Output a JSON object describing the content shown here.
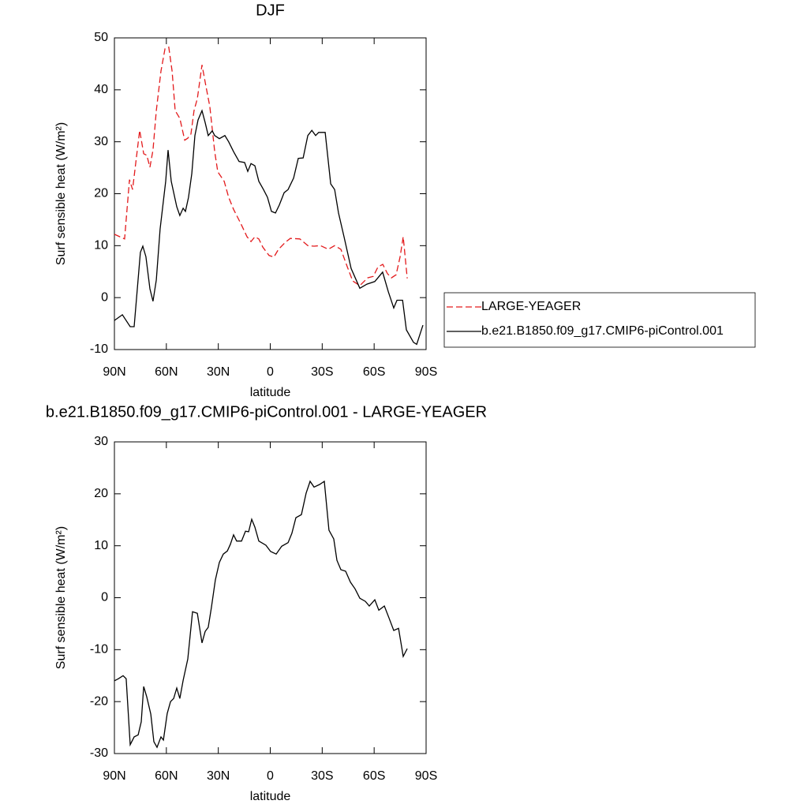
{
  "chart_data": [
    {
      "type": "line",
      "title": "DJF",
      "xlabel": "latitude",
      "ylabel": "Surf sensible heat (W/m²)",
      "xlim": [
        90,
        -90
      ],
      "xticks": [
        {
          "value": 90,
          "label": "90N"
        },
        {
          "value": 60,
          "label": "60N"
        },
        {
          "value": 30,
          "label": "30N"
        },
        0,
        {
          "value": -30,
          "label": "30S"
        },
        {
          "value": -60,
          "label": "60S"
        },
        {
          "value": -90,
          "label": "90S"
        }
      ],
      "ylim": [
        -10,
        50
      ],
      "yticks": [
        -10,
        0,
        10,
        20,
        30,
        40,
        50
      ],
      "legend": "right",
      "series": [
        {
          "name": "LARGE-YEAGER",
          "color": "#e31a1c",
          "line_style": "dashed",
          "x": [
            90,
            84.1,
            81.3,
            79.5,
            75.4,
            73.1,
            71.3,
            69.5,
            67.7,
            65.8,
            63.1,
            60.8,
            58.6,
            56.7,
            54.9,
            52.2,
            49.4,
            47.6,
            45.8,
            44,
            42.1,
            39.4,
            37.1,
            34.9,
            32.1,
            30.3,
            26.6,
            24,
            21.2,
            17.1,
            13.4,
            11.1,
            8.9,
            6.6,
            4.3,
            0.7,
            -2.1,
            -4.8,
            -8.9,
            -11.6,
            -17.1,
            -21.7,
            -25.3,
            -29,
            -33.5,
            -37.2,
            -40.8,
            -44.5,
            -47.6,
            -51.7,
            -56.3,
            -59.5,
            -62.2,
            -65,
            -67.7,
            -70,
            -72.7,
            -75,
            -76.8,
            -79.1
          ],
          "values": [
            12.2,
            11.3,
            22.7,
            20.8,
            32.2,
            27.7,
            27.4,
            25.1,
            28.4,
            36,
            43.6,
            47.9,
            48.2,
            43.6,
            36,
            34.5,
            30.3,
            30.7,
            31.5,
            36,
            38.3,
            44.8,
            40.6,
            36.8,
            28.1,
            24.2,
            22.4,
            19.3,
            17,
            14.3,
            11.7,
            10.8,
            11.7,
            11.3,
            9.7,
            8.1,
            7.8,
            9.3,
            10.7,
            11.4,
            11.3,
            10,
            9.9,
            10,
            9.3,
            10,
            9.3,
            5.9,
            3.2,
            2.3,
            3.8,
            4.1,
            5.9,
            6.4,
            4.6,
            3.8,
            4.4,
            7.9,
            11.7,
            3.7
          ]
        },
        {
          "name": "b.e21.B1850.f09_g17.CMIP6-piControl.001",
          "color": "#000000",
          "line_style": "solid",
          "x": [
            90,
            85.4,
            80.9,
            78.6,
            75,
            73.6,
            71.8,
            69.5,
            67.7,
            65.8,
            63.6,
            60.4,
            59,
            57.2,
            54,
            52.2,
            50.3,
            49,
            47.2,
            45.3,
            43.5,
            41.7,
            39.4,
            37.6,
            35.8,
            33.5,
            32.1,
            29.4,
            26.2,
            24,
            21.2,
            18,
            14.8,
            13,
            11.1,
            8.9,
            6.6,
            3.9,
            1.6,
            -0.7,
            -3,
            -5.2,
            -8,
            -10.3,
            -13.5,
            -16.2,
            -19,
            -21.7,
            -24,
            -26.2,
            -28,
            -31.7,
            -34.9,
            -37.2,
            -39.4,
            -42.6,
            -46.7,
            -51.7,
            -55.8,
            -60.4,
            -64.9,
            -68.2,
            -71.3,
            -73.2,
            -76.4,
            -78.6,
            -82.7,
            -84.6,
            -88.2
          ],
          "values": [
            -4.4,
            -3.3,
            -5.6,
            -5.6,
            8.7,
            9.9,
            7.9,
            1.7,
            -0.7,
            3.4,
            13.2,
            22.4,
            28.4,
            22.4,
            17.5,
            15.8,
            17.2,
            16.6,
            19.3,
            23.9,
            31.2,
            34.2,
            36,
            33.7,
            31.2,
            32.1,
            31.2,
            30.6,
            31.2,
            30,
            28.1,
            26.2,
            26,
            24.3,
            25.8,
            25.4,
            22.4,
            20.8,
            19.3,
            16.6,
            16.3,
            17.8,
            20.2,
            20.8,
            23,
            26.8,
            26.9,
            31.2,
            32.2,
            31.2,
            31.8,
            31.8,
            21.9,
            20.8,
            16.3,
            11.7,
            5.6,
            1.8,
            2.6,
            3.1,
            4.9,
            1.1,
            -2,
            -0.5,
            -0.5,
            -6.2,
            -8.6,
            -9,
            -5.3
          ]
        }
      ]
    },
    {
      "type": "line",
      "title": "b.e21.B1850.f09_g17.CMIP6-piControl.001 - LARGE-YEAGER",
      "xlabel": "latitude",
      "ylabel": "Surf sensible heat (W/m²)",
      "xlim": [
        90,
        -90
      ],
      "xticks": [
        {
          "value": 90,
          "label": "90N"
        },
        {
          "value": 60,
          "label": "60N"
        },
        {
          "value": 30,
          "label": "30N"
        },
        0,
        {
          "value": -30,
          "label": "30S"
        },
        {
          "value": -60,
          "label": "60S"
        },
        {
          "value": -90,
          "label": "90S"
        }
      ],
      "ylim": [
        -30,
        30
      ],
      "yticks": [
        -30,
        -20,
        -10,
        0,
        10,
        20,
        30
      ],
      "series": [
        {
          "color": "#000000",
          "line_style": "solid",
          "x": [
            90,
            87.7,
            85,
            83.2,
            80.9,
            78.6,
            76.3,
            74.5,
            73.1,
            71.3,
            69,
            67.2,
            65.4,
            63.1,
            61.7,
            59.5,
            57.6,
            55.8,
            54,
            52.2,
            50.3,
            47.6,
            44.9,
            42.1,
            39.4,
            37.6,
            35.8,
            34,
            31.7,
            29.4,
            27.1,
            24.8,
            23,
            21.2,
            19.4,
            16.6,
            14.3,
            12.5,
            10.7,
            8.9,
            6.6,
            2.5,
            -0.2,
            -3.4,
            -6.6,
            -10.3,
            -12.5,
            -14.8,
            -18,
            -20.7,
            -23,
            -25.3,
            -28.5,
            -31.2,
            -33.9,
            -36.7,
            -38.5,
            -40.8,
            -43.5,
            -46.3,
            -49,
            -51.7,
            -54.9,
            -57.2,
            -60.4,
            -62.7,
            -65.9,
            -68.6,
            -71.3,
            -74.1,
            -76.8,
            -79.1
          ],
          "values": [
            -16,
            -15.6,
            -15,
            -15.6,
            -28.3,
            -26.8,
            -26.4,
            -23.9,
            -17.1,
            -19.1,
            -22.4,
            -27.7,
            -28.8,
            -26.8,
            -27.4,
            -22.3,
            -20,
            -19.4,
            -17.4,
            -19.4,
            -15.9,
            -11.8,
            -2.7,
            -3,
            -8.7,
            -6.5,
            -5.7,
            -1.9,
            3.4,
            6.8,
            8.4,
            9,
            10.3,
            12.1,
            10.9,
            10.9,
            12.8,
            12.7,
            15.1,
            13.6,
            10.9,
            10.1,
            8.9,
            8.4,
            9.9,
            10.6,
            12.4,
            15.4,
            16,
            20.1,
            22.4,
            21.3,
            21.8,
            22.4,
            13,
            11.3,
            7.2,
            5.4,
            5.1,
            3,
            1.7,
            -0.1,
            -0.7,
            -1.6,
            -0.4,
            -2.4,
            -1.6,
            -3.9,
            -6.3,
            -5.9,
            -11.3,
            -9.8
          ]
        }
      ]
    }
  ]
}
